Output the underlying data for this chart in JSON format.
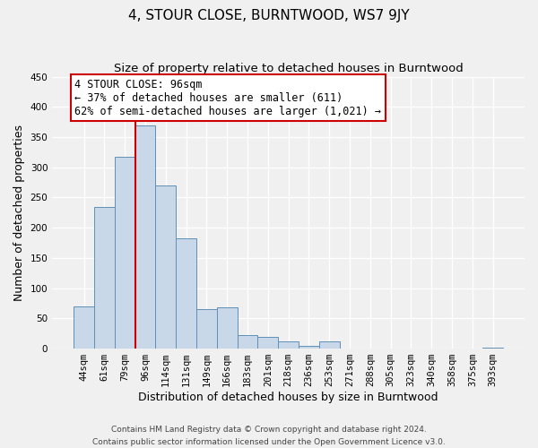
{
  "title": "4, STOUR CLOSE, BURNTWOOD, WS7 9JY",
  "subtitle": "Size of property relative to detached houses in Burntwood",
  "xlabel": "Distribution of detached houses by size in Burntwood",
  "ylabel": "Number of detached properties",
  "footer_line1": "Contains HM Land Registry data © Crown copyright and database right 2024.",
  "footer_line2": "Contains public sector information licensed under the Open Government Licence v3.0.",
  "bar_labels": [
    "44sqm",
    "61sqm",
    "79sqm",
    "96sqm",
    "114sqm",
    "131sqm",
    "149sqm",
    "166sqm",
    "183sqm",
    "201sqm",
    "218sqm",
    "236sqm",
    "253sqm",
    "271sqm",
    "288sqm",
    "305sqm",
    "323sqm",
    "340sqm",
    "358sqm",
    "375sqm",
    "393sqm"
  ],
  "bar_values": [
    70,
    235,
    317,
    370,
    270,
    183,
    65,
    68,
    23,
    20,
    12,
    5,
    12,
    0,
    0,
    0,
    0,
    0,
    0,
    0,
    2
  ],
  "bar_color": "#c8d8e8",
  "bar_edge_color": "#6090b8",
  "vline_color": "#cc0000",
  "vline_bar_index": 3,
  "annotation_title": "4 STOUR CLOSE: 96sqm",
  "annotation_line1": "← 37% of detached houses are smaller (611)",
  "annotation_line2": "62% of semi-detached houses are larger (1,021) →",
  "annotation_box_edgecolor": "#cc0000",
  "annotation_box_facecolor": "#ffffff",
  "ylim": [
    0,
    450
  ],
  "yticks": [
    0,
    50,
    100,
    150,
    200,
    250,
    300,
    350,
    400,
    450
  ],
  "background_color": "#f0f0f0",
  "plot_bg_color": "#f0f0f0",
  "grid_color": "#ffffff",
  "title_fontsize": 11,
  "subtitle_fontsize": 9.5,
  "axis_label_fontsize": 9,
  "tick_fontsize": 7.5,
  "annotation_fontsize": 8.5,
  "footer_fontsize": 6.5,
  "ylabel_fontsize": 9
}
